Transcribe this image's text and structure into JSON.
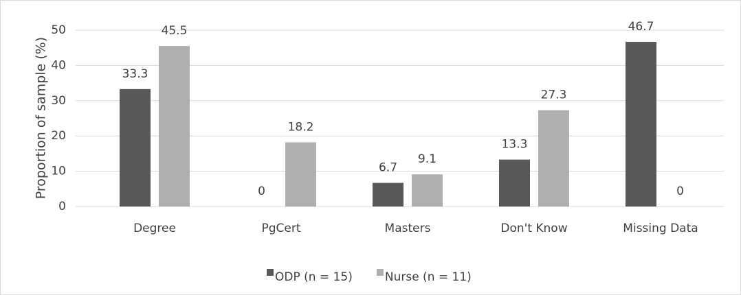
{
  "chart_data": {
    "type": "bar",
    "y_label": "Proportion of sample (%)",
    "categories": [
      "Degree",
      "PgCert",
      "Masters",
      "Don't Know",
      "Missing Data"
    ],
    "series": [
      {
        "name": "ODP (n = 15)",
        "color": "#595959",
        "values": [
          33.3,
          0,
          6.7,
          13.3,
          46.7
        ]
      },
      {
        "name": "Nurse (n = 11)",
        "color": "#afafaf",
        "values": [
          45.5,
          18.2,
          9.1,
          27.3,
          0
        ]
      }
    ],
    "ylim": [
      0,
      50
    ],
    "yticks": [
      0,
      10,
      20,
      30,
      40,
      50
    ],
    "grid": true,
    "legend": "bottom"
  }
}
